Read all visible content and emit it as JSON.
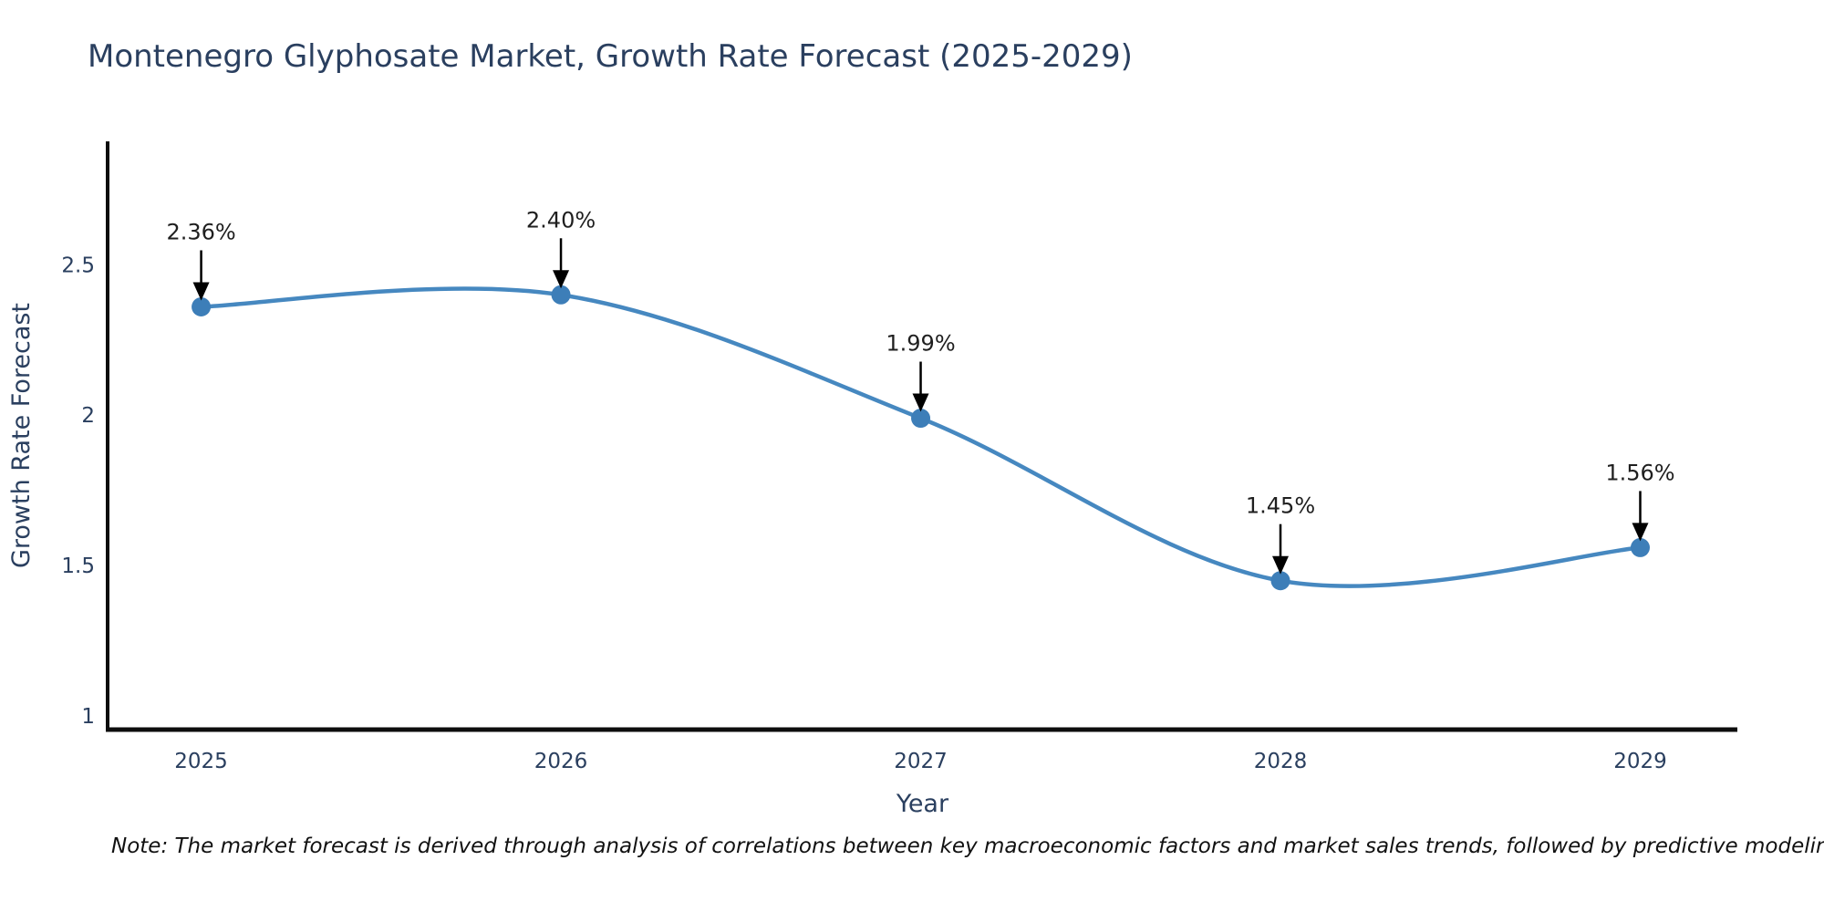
{
  "title": "Montenegro Glyphosate Market, Growth Rate Forecast (2025-2029)",
  "note": "Note: The market forecast is derived through analysis of correlations between key macroeconomic factors and market sales trends, followed by predictive modeling to project future sales",
  "colors": {
    "line": "#4688c0",
    "marker": "#3d7eb8",
    "title": "#2a3f5f",
    "tick": "#2a3f5f",
    "axis_label": "#2a3f5f",
    "annotation_text": "#1f1f1f",
    "annotation_arrow": "#000000",
    "axis_line": "#0d0d0d",
    "background": "#ffffff"
  },
  "chart_data": {
    "type": "line",
    "line_shape": "spline",
    "title": "Montenegro Glyphosate Market, Growth Rate Forecast (2025-2029)",
    "x": [
      2025,
      2026,
      2027,
      2028,
      2029
    ],
    "y": [
      2.36,
      2.4,
      1.99,
      1.45,
      1.56
    ],
    "point_labels": [
      "2.36%",
      "2.40%",
      "1.99%",
      "1.45%",
      "1.56%"
    ],
    "xlabel": "Year",
    "ylabel": "Growth Rate Forecast",
    "xlim": [
      2024.74,
      2029.27
    ],
    "ylim": [
      0.955,
      2.91
    ],
    "xticks": [
      2025,
      2026,
      2027,
      2028,
      2029
    ],
    "xtick_labels": [
      "2025",
      "2026",
      "2027",
      "2028",
      "2029"
    ],
    "yticks": [
      1,
      1.5,
      2,
      2.5
    ],
    "ytick_labels": [
      "1",
      "1.5",
      "2",
      "2.5"
    ],
    "grid": false,
    "legend": false,
    "annotations_have_arrows": true
  }
}
